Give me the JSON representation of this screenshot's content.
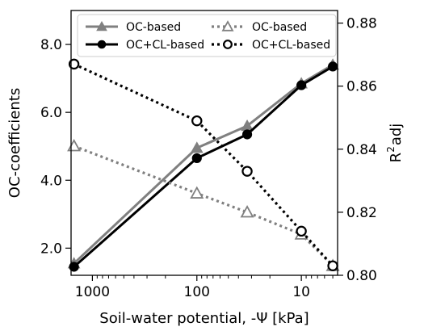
{
  "chart_data": {
    "type": "line",
    "xlabel": "Soil-water potential, -Ψ [kPa]",
    "ylabel_left": "OC-coefficients",
    "ylabel_right": {
      "base": "R",
      "sup": "2",
      "sub": "adj"
    },
    "x_scale": "log",
    "x_reversed": true,
    "xlim": [
      1600,
      4.5
    ],
    "x_ticks": [
      1000,
      100,
      10
    ],
    "x_tick_labels": [
      "1000",
      "100",
      "10"
    ],
    "ylim_left": [
      1.2,
      9.0
    ],
    "y_ticks_left": [
      2.0,
      4.0,
      6.0,
      8.0
    ],
    "y_tick_labels_left": [
      "2.0",
      "4.0",
      "6.0",
      "8.0"
    ],
    "ylim_right": [
      0.8,
      0.884
    ],
    "y_ticks_right": [
      0.8,
      0.82,
      0.84,
      0.86,
      0.88
    ],
    "y_tick_labels_right": [
      "0.80",
      "0.82",
      "0.84",
      "0.86",
      "0.88"
    ],
    "grid": false,
    "legend_position": "top",
    "series": [
      {
        "name": "OC-based",
        "axis": "left",
        "style": "solid",
        "marker": "triangle-filled",
        "color": "#808080",
        "x": [
          1500,
          100,
          33,
          10,
          5
        ],
        "y": [
          1.55,
          4.95,
          5.6,
          6.85,
          7.4
        ]
      },
      {
        "name": "OC+CL-based",
        "axis": "left",
        "style": "solid",
        "marker": "circle-filled",
        "color": "#000000",
        "x": [
          1500,
          100,
          33,
          10,
          5
        ],
        "y": [
          1.45,
          4.65,
          5.35,
          6.8,
          7.35
        ]
      },
      {
        "name": "OC-based",
        "axis": "right",
        "style": "dotted",
        "marker": "triangle-open",
        "color": "#808080",
        "x": [
          1500,
          100,
          33,
          10,
          5
        ],
        "y": [
          0.841,
          0.826,
          0.82,
          0.813,
          0.803
        ]
      },
      {
        "name": "OC+CL-based",
        "axis": "right",
        "style": "dotted",
        "marker": "circle-open",
        "color": "#000000",
        "x": [
          1500,
          100,
          33,
          10,
          5
        ],
        "y": [
          0.867,
          0.849,
          0.833,
          0.814,
          0.803
        ]
      }
    ]
  }
}
